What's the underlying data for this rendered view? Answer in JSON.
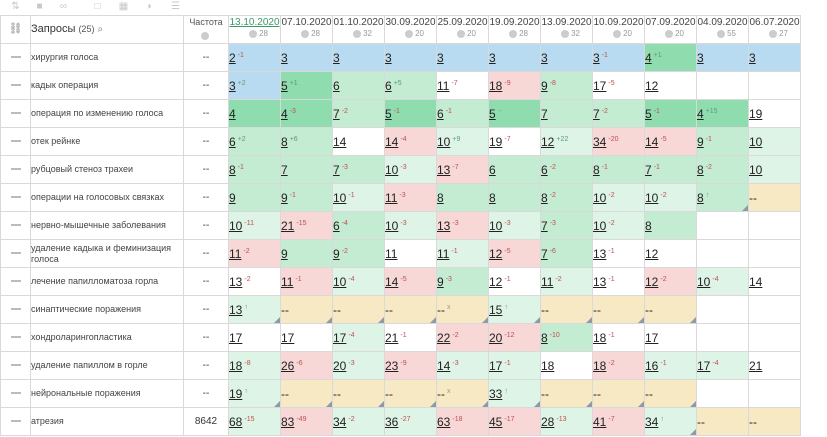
{
  "toolbar": {
    "icons": [
      "sort-icon",
      "camera-icon",
      "link-icon",
      "checkbox-icon",
      "grid-icon",
      "contrast-icon",
      "list-icon"
    ]
  },
  "header": {
    "query_label": "Запросы",
    "query_count": "(25)",
    "freq_label": "Частота",
    "dates": [
      {
        "date": "13.10.2020",
        "sub": "28",
        "active": true
      },
      {
        "date": "07.10.2020",
        "sub": "28"
      },
      {
        "date": "01.10.2020",
        "sub": "32"
      },
      {
        "date": "30.09.2020",
        "sub": "20"
      },
      {
        "date": "25.09.2020",
        "sub": "20"
      },
      {
        "date": "19.09.2020",
        "sub": "28"
      },
      {
        "date": "13.09.2020",
        "sub": "32"
      },
      {
        "date": "10.09.2020",
        "sub": "20"
      },
      {
        "date": "07.09.2020",
        "sub": "20"
      },
      {
        "date": "04.09.2020",
        "sub": "55"
      },
      {
        "date": "06.07.2020",
        "sub": "27"
      }
    ]
  },
  "rows": [
    {
      "q": "хирургия голоса",
      "f": "--",
      "cells": [
        [
          "2",
          "-1",
          "bg-blue"
        ],
        [
          "3",
          "",
          "bg-blue"
        ],
        [
          "3",
          "",
          "bg-blue"
        ],
        [
          "3",
          "",
          "bg-blue"
        ],
        [
          "3",
          "",
          "bg-blue"
        ],
        [
          "3",
          "",
          "bg-blue"
        ],
        [
          "3",
          "",
          "bg-blue"
        ],
        [
          "3",
          "-1",
          "bg-blue"
        ],
        [
          "4",
          "+1",
          "bg-green1"
        ],
        [
          "3",
          "",
          "bg-blue"
        ],
        [
          "3",
          "",
          "bg-blue"
        ]
      ]
    },
    {
      "q": "кадык операция",
      "f": "--",
      "cells": [
        [
          "3",
          "+2",
          "bg-blue"
        ],
        [
          "5",
          "+1",
          "bg-green1"
        ],
        [
          "6",
          "",
          "bg-green2"
        ],
        [
          "6",
          "+5",
          "bg-green2"
        ],
        [
          "11",
          "-7",
          "bg-white"
        ],
        [
          "18",
          "-9",
          "bg-red"
        ],
        [
          "9",
          "-8",
          "bg-green2"
        ],
        [
          "17",
          "-5",
          "bg-white"
        ],
        [
          "12",
          "",
          "bg-white"
        ],
        [
          "",
          "",
          "bg-white"
        ],
        [
          "",
          "",
          "bg-white"
        ]
      ]
    },
    {
      "q": "операция по изменению голоса",
      "f": "--",
      "cells": [
        [
          "4",
          "",
          "bg-green1"
        ],
        [
          "4",
          "-3",
          "bg-green1"
        ],
        [
          "7",
          "-2",
          "bg-green2"
        ],
        [
          "5",
          "-1",
          "bg-green1"
        ],
        [
          "6",
          "-1",
          "bg-green2"
        ],
        [
          "5",
          "--",
          "bg-green1"
        ],
        [
          "7",
          "",
          "bg-green2"
        ],
        [
          "7",
          "-2",
          "bg-green2"
        ],
        [
          "5",
          "-1",
          "bg-green1"
        ],
        [
          "4",
          "+15",
          "bg-green1"
        ],
        [
          "19",
          "",
          "bg-white"
        ]
      ]
    },
    {
      "q": "отек рейнке",
      "f": "--",
      "cells": [
        [
          "6",
          "+2",
          "bg-green2"
        ],
        [
          "8",
          "+6",
          "bg-green2"
        ],
        [
          "14",
          "",
          "bg-white"
        ],
        [
          "14",
          "-4",
          "bg-red"
        ],
        [
          "10",
          "+9",
          "bg-green3"
        ],
        [
          "19",
          "-7",
          "bg-white"
        ],
        [
          "12",
          "+22",
          "bg-green3"
        ],
        [
          "34",
          "-20",
          "bg-red"
        ],
        [
          "14",
          "-5",
          "bg-red"
        ],
        [
          "9",
          "-1",
          "bg-green2"
        ],
        [
          "10",
          "",
          "bg-green3"
        ]
      ]
    },
    {
      "q": "рубцовый стеноз трахеи",
      "f": "--",
      "cells": [
        [
          "8",
          "-1",
          "bg-green2"
        ],
        [
          "7",
          "",
          "bg-green2"
        ],
        [
          "7",
          "-3",
          "bg-green2"
        ],
        [
          "10",
          "-3",
          "bg-green3"
        ],
        [
          "13",
          "-7",
          "bg-red"
        ],
        [
          "6",
          "",
          "bg-green2"
        ],
        [
          "6",
          "-2",
          "bg-green2"
        ],
        [
          "8",
          "-1",
          "bg-green2"
        ],
        [
          "7",
          "-1",
          "bg-green2"
        ],
        [
          "8",
          "-2",
          "bg-green2"
        ],
        [
          "10",
          "",
          "bg-green3"
        ]
      ]
    },
    {
      "q": "операции на голосовых связках",
      "f": "--",
      "cells": [
        [
          "9",
          "",
          "bg-green2"
        ],
        [
          "9",
          "-1",
          "bg-green2"
        ],
        [
          "10",
          "-1",
          "bg-green3"
        ],
        [
          "11",
          "-3",
          "bg-red"
        ],
        [
          "8",
          "",
          "bg-green2"
        ],
        [
          "8",
          "",
          "bg-green2"
        ],
        [
          "8",
          "-2",
          "bg-green2"
        ],
        [
          "10",
          "-2",
          "bg-green3"
        ],
        [
          "10",
          "-2",
          "bg-green3"
        ],
        [
          "8",
          "↑",
          "bg-green2"
        ],
        [
          "--",
          "",
          "bg-yellow"
        ]
      ]
    },
    {
      "q": "нервно-мышечные заболевания",
      "f": "--",
      "cells": [
        [
          "10",
          "-11",
          "bg-green3"
        ],
        [
          "21",
          "-15",
          "bg-red"
        ],
        [
          "6",
          "-4",
          "bg-green2"
        ],
        [
          "10",
          "-3",
          "bg-green3"
        ],
        [
          "13",
          "-3",
          "bg-red"
        ],
        [
          "10",
          "-3",
          "bg-green3"
        ],
        [
          "7",
          "-3",
          "bg-green2"
        ],
        [
          "10",
          "-2",
          "bg-green3"
        ],
        [
          "8",
          "",
          "bg-green2"
        ],
        [
          "",
          "",
          "bg-white"
        ],
        [
          "",
          "",
          "bg-white"
        ]
      ]
    },
    {
      "q": "удаление кадыка и феминизация голоса",
      "f": "--",
      "cells": [
        [
          "11",
          "-2",
          "bg-red"
        ],
        [
          "9",
          "",
          "bg-green2"
        ],
        [
          "9",
          "-2",
          "bg-green2"
        ],
        [
          "11",
          "",
          "bg-white"
        ],
        [
          "11",
          "-1",
          "bg-green3"
        ],
        [
          "12",
          "-5",
          "bg-red"
        ],
        [
          "7",
          "-6",
          "bg-green2"
        ],
        [
          "13",
          "-1",
          "bg-white"
        ],
        [
          "12",
          "",
          "bg-white"
        ],
        [
          "",
          "",
          "bg-white"
        ],
        [
          "",
          "",
          "bg-white"
        ]
      ]
    },
    {
      "q": "лечение папилломатоза горла",
      "f": "--",
      "cells": [
        [
          "13",
          "-2",
          "bg-white"
        ],
        [
          "11",
          "-1",
          "bg-red"
        ],
        [
          "10",
          "-4",
          "bg-green3"
        ],
        [
          "14",
          "-5",
          "bg-red"
        ],
        [
          "9",
          "-3",
          "bg-green2"
        ],
        [
          "12",
          "-1",
          "bg-white"
        ],
        [
          "11",
          "-2",
          "bg-green3"
        ],
        [
          "13",
          "-1",
          "bg-white"
        ],
        [
          "12",
          "-2",
          "bg-red"
        ],
        [
          "10",
          "-4",
          "bg-green3"
        ],
        [
          "14",
          "",
          "bg-white"
        ]
      ]
    },
    {
      "q": "синаптические поражения",
      "f": "--",
      "cells": [
        [
          "13",
          "↑",
          "bg-green3"
        ],
        [
          "--",
          "",
          "bg-yellow"
        ],
        [
          "--",
          "",
          "bg-yellow"
        ],
        [
          "--",
          "",
          "bg-yellow"
        ],
        [
          "--",
          "x",
          "bg-yellow"
        ],
        [
          "15",
          "↑",
          "bg-green3"
        ],
        [
          "--",
          "",
          "bg-yellow"
        ],
        [
          "--",
          "",
          "bg-yellow"
        ],
        [
          "--",
          "",
          "bg-yellow"
        ],
        [
          "",
          "",
          "bg-white"
        ],
        [
          "",
          "",
          "bg-white"
        ]
      ]
    },
    {
      "q": "хондроларингопластика",
      "f": "--",
      "cells": [
        [
          "17",
          "",
          "bg-white"
        ],
        [
          "17",
          "",
          "bg-white"
        ],
        [
          "17",
          "-4",
          "bg-green3"
        ],
        [
          "21",
          "-1",
          "bg-white"
        ],
        [
          "22",
          "-2",
          "bg-red"
        ],
        [
          "20",
          "-12",
          "bg-red"
        ],
        [
          "8",
          "-10",
          "bg-green2"
        ],
        [
          "18",
          "-1",
          "bg-white"
        ],
        [
          "17",
          "",
          "bg-white"
        ],
        [
          "",
          "",
          "bg-white"
        ],
        [
          "",
          "",
          "bg-white"
        ]
      ]
    },
    {
      "q": "удаление папиллом в горле",
      "f": "--",
      "cells": [
        [
          "18",
          "-8",
          "bg-green3"
        ],
        [
          "26",
          "-6",
          "bg-red"
        ],
        [
          "20",
          "-3",
          "bg-green3"
        ],
        [
          "23",
          "-9",
          "bg-red"
        ],
        [
          "14",
          "-3",
          "bg-green3"
        ],
        [
          "17",
          "-1",
          "bg-green3"
        ],
        [
          "18",
          "",
          "bg-white"
        ],
        [
          "18",
          "-2",
          "bg-red"
        ],
        [
          "16",
          "-1",
          "bg-green3"
        ],
        [
          "17",
          "-4",
          "bg-green3"
        ],
        [
          "21",
          "",
          "bg-white"
        ]
      ]
    },
    {
      "q": "нейрональные поражения",
      "f": "--",
      "cells": [
        [
          "19",
          "↑",
          "bg-green3"
        ],
        [
          "--",
          "",
          "bg-yellow"
        ],
        [
          "--",
          "",
          "bg-yellow"
        ],
        [
          "--",
          "",
          "bg-yellow"
        ],
        [
          "--",
          "x",
          "bg-yellow"
        ],
        [
          "33",
          "↑",
          "bg-green3"
        ],
        [
          "--",
          "",
          "bg-yellow"
        ],
        [
          "--",
          "",
          "bg-yellow"
        ],
        [
          "--",
          "",
          "bg-yellow"
        ],
        [
          "",
          "",
          "bg-white"
        ],
        [
          "",
          "",
          "bg-white"
        ]
      ]
    },
    {
      "q": "атрезия",
      "f": "8642",
      "cells": [
        [
          "68",
          "-15",
          "bg-green3"
        ],
        [
          "83",
          "-49",
          "bg-red"
        ],
        [
          "34",
          "-2",
          "bg-green3"
        ],
        [
          "36",
          "-27",
          "bg-green3"
        ],
        [
          "63",
          "-18",
          "bg-red"
        ],
        [
          "45",
          "-17",
          "bg-red"
        ],
        [
          "28",
          "-13",
          "bg-green3"
        ],
        [
          "41",
          "-7",
          "bg-red"
        ],
        [
          "34",
          "↑",
          "bg-green3"
        ],
        [
          "--",
          "",
          "bg-yellow"
        ],
        [
          "--",
          "",
          "bg-yellow"
        ]
      ]
    }
  ]
}
